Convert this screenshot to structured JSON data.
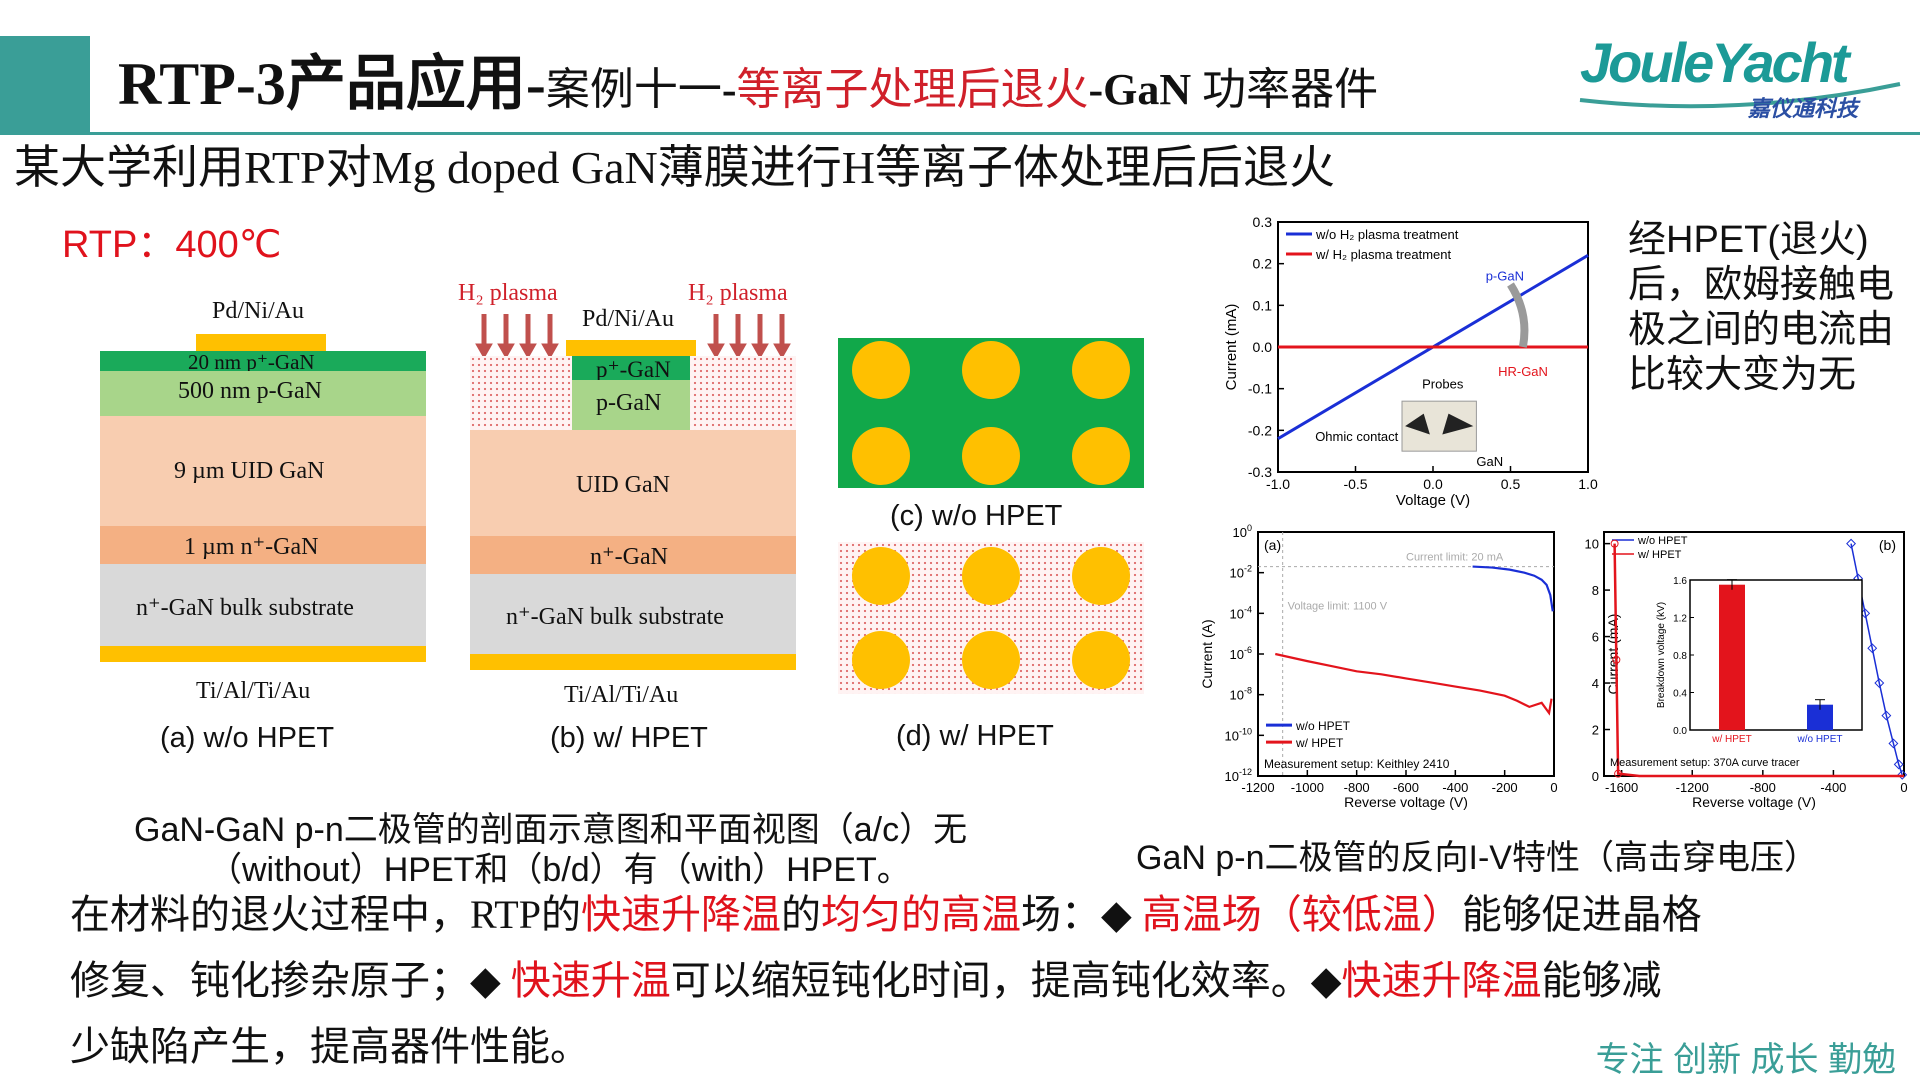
{
  "header": {
    "title_main": "RTP-3产品应用",
    "title_dash1": "-",
    "title_case": "案例十一",
    "title_dash2": "-",
    "title_process": "等离子处理后退火",
    "title_dash3": "-",
    "title_gan": "GaN",
    "title_device": " 功率器件",
    "logo_text": "JouleYacht",
    "logo_cn": "嘉仪通科技"
  },
  "subtitle": "某大学利用RTP对Mg doped GaN薄膜进行H等离子体处理后后退火",
  "rtp_temp": "RTP：400℃",
  "cross_section_a": {
    "top_contact": "Pd/Ni/Au",
    "layers": [
      "20 nm p⁺-GaN",
      "500 nm p-GaN",
      "9 µm UID GaN",
      "1 µm n⁺-GaN",
      "n⁺-GaN bulk substrate"
    ],
    "bottom_contact": "Ti/Al/Ti/Au",
    "caption": "(a) w/o HPET"
  },
  "cross_section_b": {
    "plasma_left": "H₂ plasma",
    "plasma_right": "H₂ plasma",
    "top_contact": "Pd/Ni/Au",
    "layers": [
      "p⁺-GaN",
      "p-GaN",
      "UID GaN",
      "n⁺-GaN",
      "n⁺-GaN bulk substrate"
    ],
    "bottom_contact": "Ti/Al/Ti/Au",
    "caption": "(b) w/ HPET"
  },
  "plan_c_caption": "(c) w/o HPET",
  "plan_d_caption": "(d) w/ HPET",
  "figure_caption_left": [
    "GaN-GaN p-n二极管的剖面示意图和平面视图（a/c）无",
    "（without）HPET和（b/d）有（with）HPET。"
  ],
  "figure_caption_right": "GaN p-n二极管的反向I-V特性（高击穿电压）",
  "right_note": [
    "经HPET(退火)",
    "后，欧姆接触电",
    "极之间的电流由",
    "比较大变为无"
  ],
  "paragraph": [
    [
      {
        "t": "在材料的退火过程中，RTP的",
        "r": false
      },
      {
        "t": "快速升降温",
        "r": true
      },
      {
        "t": "的",
        "r": false
      },
      {
        "t": "均匀的高温",
        "r": true
      },
      {
        "t": "场：◆ ",
        "r": false
      },
      {
        "t": "高温场（较低温）",
        "r": true
      },
      {
        "t": "能够促进晶格",
        "r": false
      }
    ],
    [
      {
        "t": "修复、钝化掺杂原子；◆ ",
        "r": false
      },
      {
        "t": "快速升温",
        "r": true
      },
      {
        "t": "可以缩短钝化时间，提高钝化效率。◆",
        "r": false
      },
      {
        "t": "快速升降温",
        "r": true
      },
      {
        "t": "能够减",
        "r": false
      }
    ],
    [
      {
        "t": "少缺陷产生，提高器件性能。",
        "r": false
      }
    ]
  ],
  "motto": "专注 创新 成长 勤勉",
  "chart_data": [
    {
      "type": "line",
      "id": "iv-linear",
      "xlabel": "Voltage (V)",
      "ylabel": "Current (mA)",
      "xlim": [
        -1.0,
        1.0
      ],
      "ylim": [
        -0.3,
        0.3
      ],
      "xticks": [
        "-1.0",
        "-0.5",
        "0.0",
        "0.5",
        "1.0"
      ],
      "yticks": [
        "0.3",
        "0.2",
        "0.1",
        "0.0",
        "-0.1",
        "-0.2",
        "-0.3"
      ],
      "series": [
        {
          "name": "w/o H₂ plasma treatment",
          "color": "#1a2fd6",
          "x": [
            -1.0,
            1.0
          ],
          "y": [
            -0.22,
            0.22
          ]
        },
        {
          "name": "w/ H₂ plasma treatment",
          "color": "#e3141c",
          "x": [
            -1.0,
            1.0
          ],
          "y": [
            0.0,
            0.0
          ]
        }
      ],
      "annotations": [
        "p-GaN",
        "HR-GaN",
        "Probes",
        "Ohmic contact",
        "GaN"
      ],
      "colors": {
        "arrow": "#9a9a9a",
        "pgan": "#1a2fd6",
        "hrgan": "#e3141c"
      }
    },
    {
      "type": "line",
      "id": "reverse-iv-log",
      "panel": "(a)",
      "xlabel": "Reverse voltage (V)",
      "ylabel": "Current (A)",
      "xlim": [
        -1200,
        0
      ],
      "xticks": [
        "-1200",
        "-1000",
        "-800",
        "-600",
        "-400",
        "-200",
        "0"
      ],
      "yticks_exp": [
        "0",
        "-2",
        "-4",
        "-6",
        "-8",
        "-10",
        "-12"
      ],
      "ylim_log10": [
        -12,
        0
      ],
      "annotations": [
        "Current limit: 20 mA",
        "Voltage limit: 1100 V",
        "Measurement setup: Keithley 2410"
      ],
      "series": [
        {
          "name": "w/o HPET",
          "color": "#1a2fd6",
          "x": [
            -330,
            -250,
            -180,
            -120,
            -80,
            -50,
            -30,
            -15,
            -5
          ],
          "log10y": [
            -1.7,
            -1.75,
            -1.85,
            -2.0,
            -2.15,
            -2.35,
            -2.6,
            -3.1,
            -3.9
          ]
        },
        {
          "name": "w/ HPET",
          "color": "#e3141c",
          "x": [
            -1130,
            -1000,
            -900,
            -800,
            -700,
            -600,
            -500,
            -400,
            -300,
            -200,
            -150,
            -100,
            -50,
            -20,
            -10
          ],
          "log10y": [
            -6.0,
            -6.35,
            -6.6,
            -6.85,
            -7.0,
            -7.2,
            -7.4,
            -7.6,
            -7.8,
            -8.05,
            -8.3,
            -8.6,
            -8.4,
            -8.9,
            -8.2
          ]
        }
      ]
    },
    {
      "type": "line",
      "id": "reverse-iv-breakdown",
      "panel": "(b)",
      "xlabel": "Reverse voltage (V)",
      "ylabel": "Current (mA)",
      "xlim": [
        -1700,
        0
      ],
      "ylim": [
        0,
        10.5
      ],
      "xticks": [
        "-1600",
        "-1200",
        "-800",
        "-400",
        "0"
      ],
      "yticks": [
        "10",
        "8",
        "6",
        "4",
        "2",
        "0"
      ],
      "annotations": [
        "Measurement setup: 370A curve tracer"
      ],
      "series": [
        {
          "name": "w/o HPET",
          "color": "#1a2fd6",
          "x": [
            -300,
            -260,
            -220,
            -180,
            -140,
            -100,
            -60,
            -30,
            -10
          ],
          "y": [
            10.0,
            8.5,
            7.0,
            5.5,
            4.0,
            2.6,
            1.4,
            0.5,
            0.05
          ]
        },
        {
          "name": "w/ HPET",
          "color": "#e3141c",
          "x": [
            -1640,
            -1630,
            -1620,
            -1500,
            -1000,
            -500,
            0
          ],
          "y": [
            10.0,
            5.0,
            0.1,
            0.0,
            0.0,
            0.0,
            0.0
          ]
        }
      ],
      "inset": {
        "type": "bar",
        "ylabel": "Breakdown voltage (kV)",
        "ylim": [
          0,
          1.6
        ],
        "yticks": [
          "1.6",
          "1.2",
          "0.8",
          "0.4",
          "0.0"
        ],
        "categories": [
          "w/ HPET",
          "w/o HPET"
        ],
        "values": [
          1.55,
          0.27
        ],
        "colors": [
          "#e3141c",
          "#1a2fd6"
        ]
      }
    }
  ]
}
